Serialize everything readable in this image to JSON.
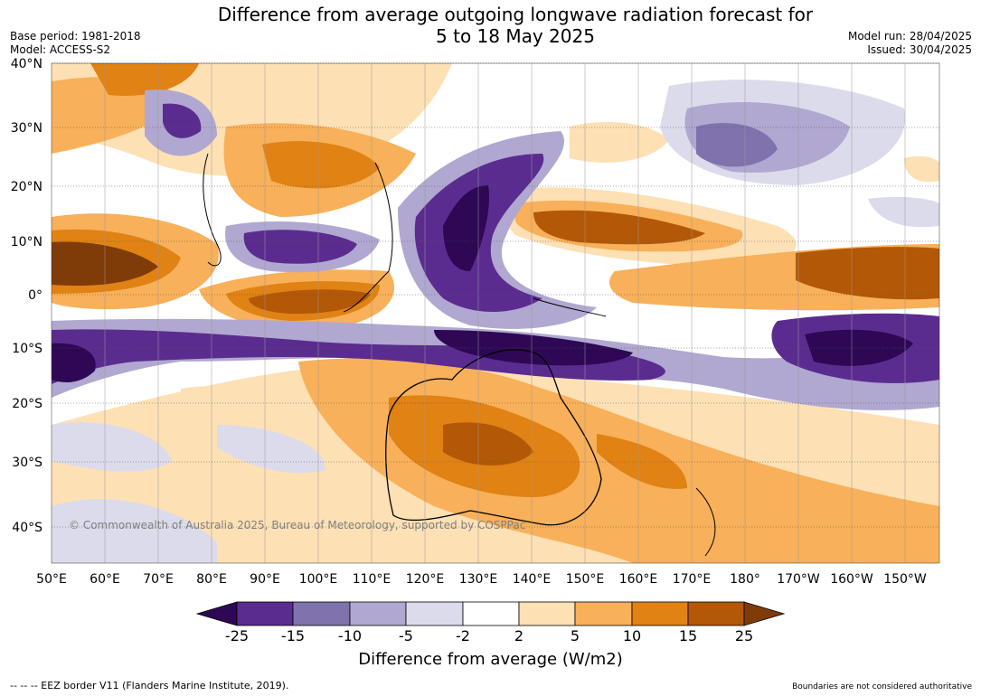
{
  "title_line1": "Difference from average outgoing longwave radiation forecast for",
  "title_line2": "5 to 18 May 2025",
  "base_period": "Base period: 1981-2018",
  "model": "Model: ACCESS-S2",
  "model_run": "Model run: 28/04/2025",
  "issued": "Issued: 30/04/2025",
  "lon_labels": [
    "50°E",
    "60°E",
    "70°E",
    "80°E",
    "90°E",
    "100°E",
    "110°E",
    "120°E",
    "130°E",
    "140°E",
    "150°E",
    "160°E",
    "170°E",
    "180°",
    "170°W",
    "160°W",
    "150°W"
  ],
  "lat_labels": [
    "40°N",
    "30°N",
    "20°N",
    "10°N",
    "0°",
    "10°S",
    "20°S",
    "30°S",
    "40°S"
  ],
  "copyright": "© Commonwealth of Australia 2025, Bureau of Meteorology, supported by COSPPac",
  "colorbar": {
    "labels": [
      "-25",
      "-15",
      "-10",
      "-5",
      "-2",
      "2",
      "5",
      "10",
      "15",
      "25"
    ],
    "colors": [
      "#2e0854",
      "#5b2c8f",
      "#8072ad",
      "#b0a8d0",
      "#dcdbeb",
      "#ffffff",
      "#fde0b4",
      "#f8b05a",
      "#e08214",
      "#b35806",
      "#7f3b08"
    ],
    "title": "Difference from average (W/m2)"
  },
  "footer_left": "--  --  -- EEZ border V11 (Flanders Marine Institute, 2019).",
  "footer_right": "Boundaries are not considered authoritative"
}
